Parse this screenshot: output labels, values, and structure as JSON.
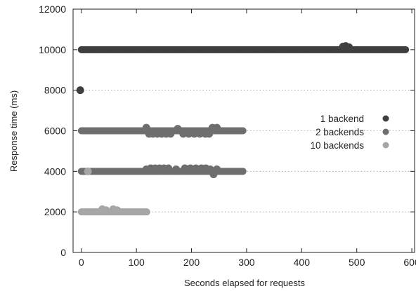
{
  "chart_data": {
    "type": "scatter",
    "title": "",
    "xlabel": "Seconds elapsed for requests",
    "ylabel": "Response time (ms)",
    "xlim": [
      -15,
      605
    ],
    "ylim": [
      0,
      12000
    ],
    "x_ticks": [
      0,
      100,
      200,
      300,
      400,
      500,
      600
    ],
    "y_ticks": [
      0,
      2000,
      4000,
      6000,
      8000,
      10000,
      12000
    ],
    "grid": "horizontal dotted",
    "legend_position": "right",
    "series": [
      {
        "name": "1 backend",
        "color": "#3f3f3f",
        "bands": [
          {
            "y": 10000,
            "x_start": 0,
            "x_end": 590
          }
        ],
        "points": [
          {
            "x": -2,
            "y": 8000
          },
          {
            "x": 475,
            "y": 10150
          },
          {
            "x": 480,
            "y": 10180
          },
          {
            "x": 486,
            "y": 10120
          }
        ]
      },
      {
        "name": "2 backends",
        "color": "#6e6e6e",
        "bands": [
          {
            "y": 6000,
            "x_start": 0,
            "x_end": 295
          },
          {
            "y": 4000,
            "x_start": 0,
            "x_end": 295
          }
        ],
        "points": [
          {
            "x": 118,
            "y": 6150
          },
          {
            "x": 123,
            "y": 5850
          },
          {
            "x": 130,
            "y": 5850
          },
          {
            "x": 138,
            "y": 5850
          },
          {
            "x": 146,
            "y": 5850
          },
          {
            "x": 154,
            "y": 5850
          },
          {
            "x": 162,
            "y": 5850
          },
          {
            "x": 175,
            "y": 6100
          },
          {
            "x": 185,
            "y": 5850
          },
          {
            "x": 195,
            "y": 5850
          },
          {
            "x": 205,
            "y": 5850
          },
          {
            "x": 215,
            "y": 5850
          },
          {
            "x": 225,
            "y": 5850
          },
          {
            "x": 232,
            "y": 5850
          },
          {
            "x": 238,
            "y": 6150
          },
          {
            "x": 246,
            "y": 6150
          },
          {
            "x": 118,
            "y": 4100
          },
          {
            "x": 126,
            "y": 4150
          },
          {
            "x": 134,
            "y": 4150
          },
          {
            "x": 142,
            "y": 4150
          },
          {
            "x": 150,
            "y": 4150
          },
          {
            "x": 158,
            "y": 4150
          },
          {
            "x": 172,
            "y": 4100
          },
          {
            "x": 188,
            "y": 4150
          },
          {
            "x": 198,
            "y": 4150
          },
          {
            "x": 208,
            "y": 4150
          },
          {
            "x": 218,
            "y": 4150
          },
          {
            "x": 226,
            "y": 4150
          },
          {
            "x": 234,
            "y": 4100
          },
          {
            "x": 240,
            "y": 3850
          },
          {
            "x": 246,
            "y": 4100
          }
        ]
      },
      {
        "name": "10 backends",
        "color": "#a6a6a6",
        "bands": [
          {
            "y": 2000,
            "x_start": 0,
            "x_end": 120
          }
        ],
        "points": [
          {
            "x": 12,
            "y": 4000
          },
          {
            "x": 38,
            "y": 2130
          },
          {
            "x": 45,
            "y": 2080
          },
          {
            "x": 58,
            "y": 2130
          },
          {
            "x": 65,
            "y": 2080
          }
        ]
      }
    ]
  }
}
